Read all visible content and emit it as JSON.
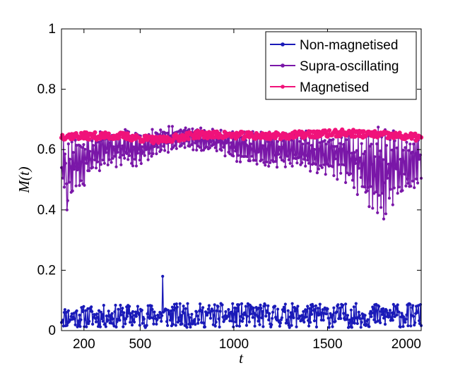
{
  "chart_data": {
    "type": "line",
    "title": "",
    "xlabel": "t",
    "ylabel": "M(t)",
    "xlim": [
      80,
      2000
    ],
    "ylim": [
      0,
      1
    ],
    "x_ticks": [
      200,
      500,
      1000,
      1500,
      2000
    ],
    "x_tick_labels": [
      "200",
      "500",
      "1000",
      "1500",
      "2000"
    ],
    "y_ticks": [
      0,
      0.2,
      0.4,
      0.6,
      0.8,
      1
    ],
    "y_tick_labels": [
      "0",
      "0.2",
      "0.4",
      "0.6",
      "0.8",
      "1"
    ],
    "grid": false,
    "legend_position": "top-right",
    "series": [
      {
        "name": "Non-magnetised",
        "color": "#1a1ab8",
        "description": "noisy, range ~0.0-0.12, spike ~0.18 near t=620",
        "baseline": [
          [
            80,
            0.045
          ],
          [
            600,
            0.05
          ],
          [
            1000,
            0.05
          ],
          [
            1500,
            0.05
          ],
          [
            2000,
            0.05
          ]
        ],
        "amplitude": [
          [
            80,
            0.035
          ],
          [
            600,
            0.04
          ],
          [
            1000,
            0.04
          ],
          [
            1500,
            0.04
          ],
          [
            2000,
            0.04
          ]
        ],
        "spikes": [
          [
            620,
            0.18
          ]
        ]
      },
      {
        "name": "Supra-oscillating",
        "color": "#7a17a8",
        "description": "oscillates ~0.45-0.68, deeper dips 0.38-0.40 near t=100 and t=1800",
        "baseline": [
          [
            80,
            0.53
          ],
          [
            150,
            0.55
          ],
          [
            300,
            0.6
          ],
          [
            500,
            0.61
          ],
          [
            700,
            0.64
          ],
          [
            900,
            0.63
          ],
          [
            1100,
            0.6
          ],
          [
            1300,
            0.6
          ],
          [
            1500,
            0.59
          ],
          [
            1600,
            0.58
          ],
          [
            1700,
            0.54
          ],
          [
            1800,
            0.53
          ],
          [
            1900,
            0.55
          ],
          [
            2000,
            0.56
          ]
        ],
        "amplitude": [
          [
            80,
            0.09
          ],
          [
            150,
            0.08
          ],
          [
            300,
            0.05
          ],
          [
            500,
            0.05
          ],
          [
            700,
            0.03
          ],
          [
            900,
            0.03
          ],
          [
            1100,
            0.05
          ],
          [
            1300,
            0.05
          ],
          [
            1500,
            0.06
          ],
          [
            1600,
            0.07
          ],
          [
            1700,
            0.1
          ],
          [
            1800,
            0.12
          ],
          [
            1900,
            0.09
          ],
          [
            2000,
            0.08
          ]
        ],
        "spikes": [
          [
            110,
            0.4
          ],
          [
            1800,
            0.37
          ]
        ]
      },
      {
        "name": "Magnetised",
        "color": "#f0127a",
        "description": "stable band ~0.62-0.67",
        "baseline": [
          [
            80,
            0.645
          ],
          [
            400,
            0.645
          ],
          [
            600,
            0.63
          ],
          [
            800,
            0.65
          ],
          [
            1200,
            0.645
          ],
          [
            1600,
            0.655
          ],
          [
            2000,
            0.64
          ]
        ],
        "amplitude": [
          [
            80,
            0.012
          ],
          [
            2000,
            0.012
          ]
        ],
        "spikes": []
      }
    ]
  }
}
